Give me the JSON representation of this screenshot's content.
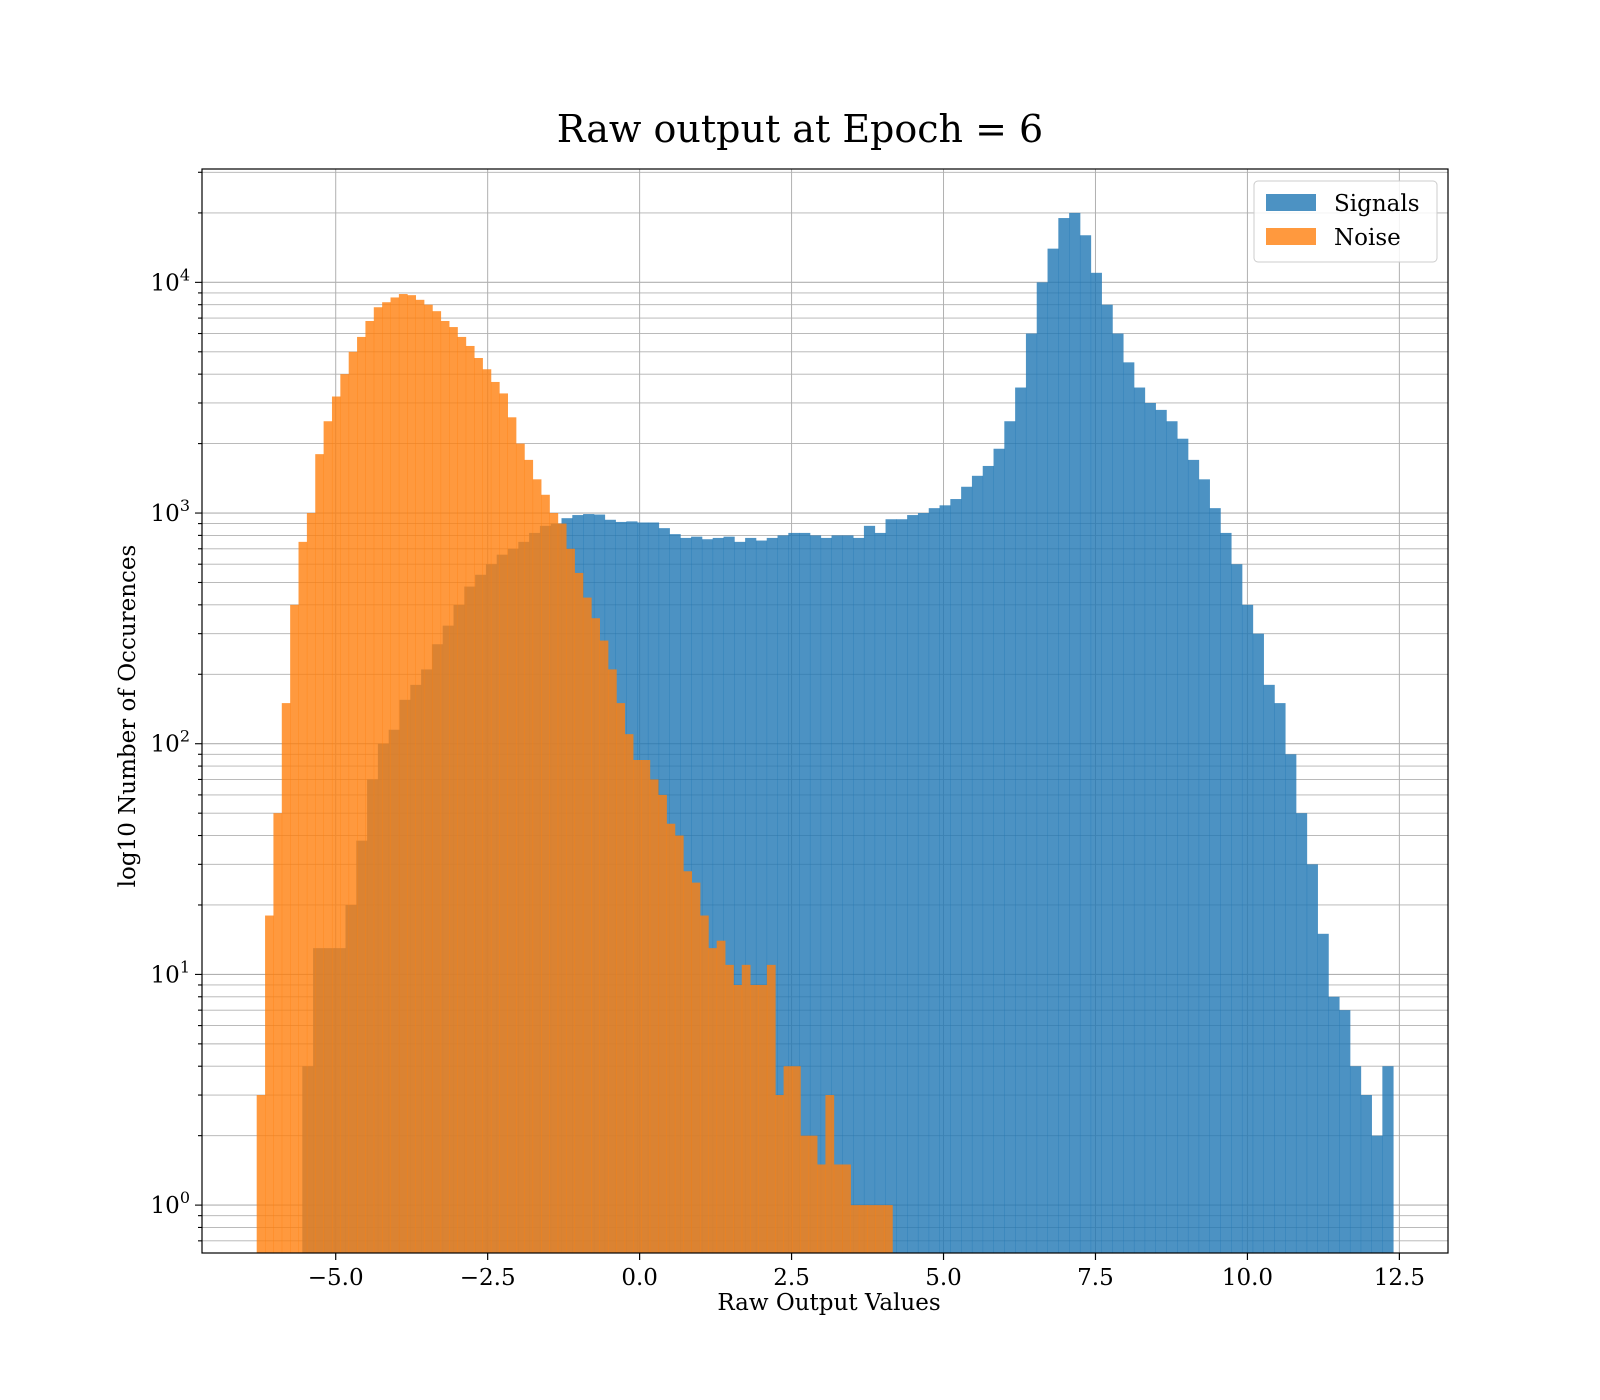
{
  "chart_data": {
    "type": "histogram",
    "title": "Raw output at Epoch = 6",
    "xlabel": "Raw Output Values",
    "ylabel": "log10 Number of Occurences",
    "xlim": [
      -7.2,
      13.3
    ],
    "ylim": [
      0.62,
      31000
    ],
    "yscale": "log",
    "grid": true,
    "grid_minor": true,
    "legend_position": "top-right",
    "x_ticks": [
      {
        "value": -5.0,
        "label": "−5.0"
      },
      {
        "value": -2.5,
        "label": "−2.5"
      },
      {
        "value": 0.0,
        "label": "0.0"
      },
      {
        "value": 2.5,
        "label": "2.5"
      },
      {
        "value": 5.0,
        "label": "5.0"
      },
      {
        "value": 7.5,
        "label": "7.5"
      },
      {
        "value": 10.0,
        "label": "10.0"
      },
      {
        "value": 12.5,
        "label": "12.5"
      }
    ],
    "y_ticks": [
      {
        "value": 1,
        "base": "10",
        "exp": "0"
      },
      {
        "value": 10,
        "base": "10",
        "exp": "1"
      },
      {
        "value": 100,
        "base": "10",
        "exp": "2"
      },
      {
        "value": 1000,
        "base": "10",
        "exp": "3"
      },
      {
        "value": 10000,
        "base": "10",
        "exp": "4"
      }
    ],
    "series": [
      {
        "name": "Signals",
        "color": "#1f77b4",
        "alpha": 0.8,
        "bin_start": -5.55,
        "bin_width": 0.1777,
        "counts": [
          4,
          13,
          13,
          13,
          20,
          38,
          70,
          100,
          115,
          155,
          180,
          210,
          270,
          325,
          400,
          480,
          540,
          600,
          660,
          700,
          750,
          820,
          880,
          900,
          950,
          980,
          990,
          985,
          935,
          915,
          920,
          910,
          910,
          860,
          810,
          780,
          790,
          770,
          780,
          790,
          750,
          780,
          760,
          780,
          800,
          820,
          820,
          800,
          780,
          800,
          800,
          780,
          880,
          820,
          940,
          940,
          980,
          1000,
          1050,
          1080,
          1150,
          1300,
          1450,
          1600,
          1900,
          2500,
          3500,
          6000,
          10000,
          14000,
          19000,
          20000,
          16000,
          11000,
          8000,
          6000,
          4500,
          3500,
          3000,
          2800,
          2500,
          2100,
          1700,
          1400,
          1050,
          820,
          600,
          400,
          300,
          180,
          150,
          90,
          50,
          30,
          15,
          8,
          7,
          4,
          3,
          2,
          4
        ]
      },
      {
        "name": "Noise",
        "color": "#ff7f0e",
        "alpha": 0.8,
        "bin_start": -6.3,
        "bin_width": 0.1376,
        "counts": [
          3,
          18,
          50,
          150,
          400,
          750,
          1000,
          1800,
          2500,
          3200,
          4000,
          5000,
          5800,
          6800,
          7800,
          8200,
          8600,
          8900,
          8800,
          8400,
          8000,
          7500,
          6800,
          6400,
          5800,
          5300,
          4700,
          4200,
          3700,
          3300,
          2600,
          2000,
          1700,
          1400,
          1200,
          1000,
          900,
          700,
          550,
          430,
          350,
          280,
          210,
          150,
          110,
          85,
          85,
          70,
          60,
          45,
          40,
          28,
          25,
          18,
          13,
          14,
          11,
          9,
          11,
          9,
          9,
          11,
          3,
          4,
          4,
          2,
          2,
          1.5,
          3,
          1.5,
          1.5,
          1,
          1,
          1,
          1,
          1
        ]
      }
    ]
  }
}
